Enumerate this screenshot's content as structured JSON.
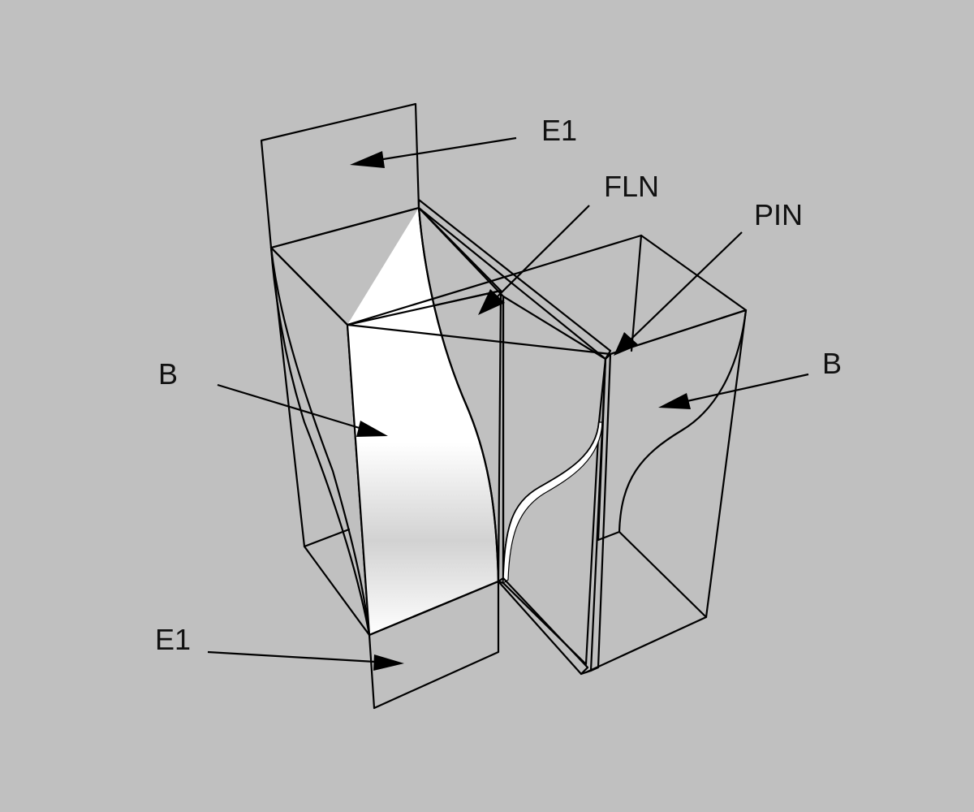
{
  "figure": {
    "background": "#c0c0c0",
    "face_light": "#ffffff",
    "face_shade": "#d4d4d4",
    "face_dark": "#808080",
    "line": "#000000"
  },
  "labels": {
    "e1_top": "E1",
    "fln": "FLN",
    "pin": "PIN",
    "b_left": "B",
    "b_right": "B",
    "e1_bottom": "E1"
  }
}
